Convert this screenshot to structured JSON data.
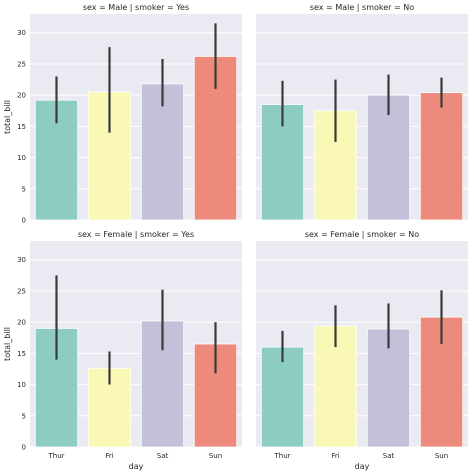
{
  "chart_data": {
    "type": "bar",
    "layout": "facet-grid-2x2",
    "categories": [
      "Thur",
      "Fri",
      "Sat",
      "Sun"
    ],
    "xlabel": "day",
    "ylabel": "total_bill",
    "ylim": [
      0,
      33
    ],
    "yticks": [
      0,
      5,
      10,
      15,
      20,
      25,
      30
    ],
    "grid": true,
    "palette": [
      "#8dcdc1",
      "#f9f8b5",
      "#c3c0d9",
      "#ec8a7b"
    ],
    "background": "#eaeaf2",
    "error_bar_color": "#3b3b3b",
    "panels": [
      {
        "title": "sex = Male | smoker = Yes",
        "values": [
          19.2,
          20.5,
          21.8,
          26.2
        ],
        "ci_low": [
          15.5,
          14.0,
          18.2,
          21.0
        ],
        "ci_high": [
          23.0,
          27.7,
          25.8,
          31.5
        ]
      },
      {
        "title": "sex = Male | smoker = No",
        "values": [
          18.5,
          17.5,
          20.0,
          20.4
        ],
        "ci_low": [
          15.0,
          12.5,
          16.8,
          18.0
        ],
        "ci_high": [
          22.3,
          22.5,
          23.3,
          22.8
        ]
      },
      {
        "title": "sex = Female | smoker = Yes",
        "values": [
          19.0,
          12.6,
          20.2,
          16.5
        ],
        "ci_low": [
          14.0,
          10.0,
          15.5,
          11.8
        ],
        "ci_high": [
          27.5,
          15.3,
          25.2,
          20.0
        ]
      },
      {
        "title": "sex = Female | smoker = No",
        "values": [
          16.0,
          19.4,
          18.9,
          20.8
        ],
        "ci_low": [
          13.6,
          16.0,
          15.8,
          16.5
        ],
        "ci_high": [
          18.6,
          22.7,
          23.0,
          25.1
        ]
      }
    ]
  }
}
